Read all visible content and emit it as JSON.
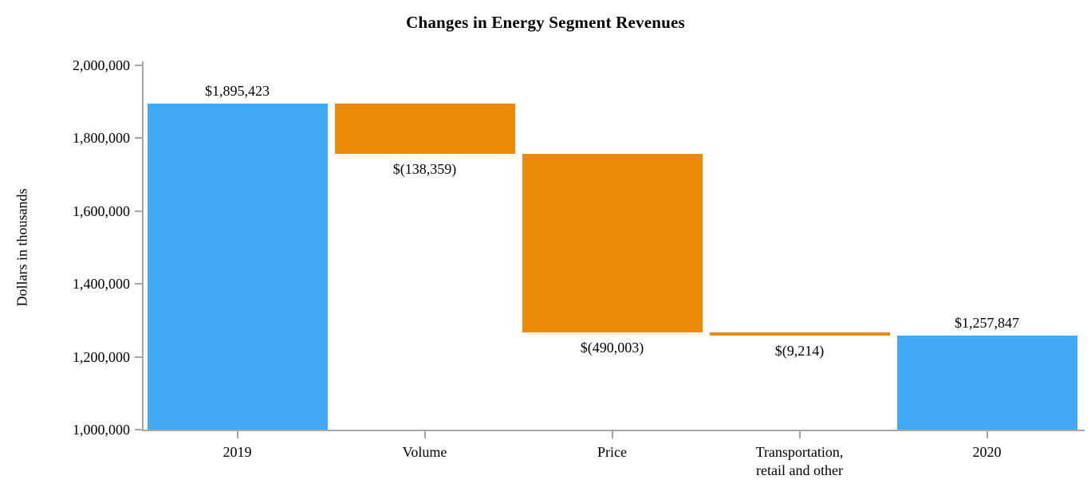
{
  "title": "Changes in Energy Segment Revenues",
  "chart_data": {
    "type": "bar",
    "subtype": "waterfall",
    "title": "Changes in Energy Segment Revenues",
    "xlabel": "",
    "ylabel": "Dollars in thousands",
    "ylim": [
      1000000,
      2000000
    ],
    "ytick_step": 200000,
    "ytick_labels": [
      "2,000,000",
      "1,800,000",
      "1,600,000",
      "1,400,000",
      "1,200,000",
      "1,000,000"
    ],
    "grid": false,
    "legend_position": "none",
    "categories": [
      "2019",
      "Volume",
      "Price",
      "Transportation,\nretail and other",
      "2020"
    ],
    "bars": [
      {
        "category": "2019",
        "value": 1895423,
        "start": 1000000,
        "end": 1895423,
        "data_label": "$1,895,423",
        "color_key": "total_blue",
        "label_position": "above"
      },
      {
        "category": "Volume",
        "value": -138359,
        "start": 1895423,
        "end": 1757064,
        "data_label": "$(138,359)",
        "color_key": "decrease_orange",
        "label_position": "below"
      },
      {
        "category": "Price",
        "value": -490003,
        "start": 1757064,
        "end": 1267061,
        "data_label": "$(490,003)",
        "color_key": "decrease_orange",
        "label_position": "below"
      },
      {
        "category": "Transportation,\nretail and other",
        "value": -9214,
        "start": 1267061,
        "end": 1257847,
        "data_label": "$(9,214)",
        "color_key": "decrease_orange",
        "label_position": "below"
      },
      {
        "category": "2020",
        "value": 1257847,
        "start": 1000000,
        "end": 1257847,
        "data_label": "$1,257,847",
        "color_key": "total_blue",
        "label_position": "above"
      }
    ],
    "colors": {
      "total_blue": "#41aaf8",
      "decrease_orange": "#eb8b05",
      "axis": "#a6a6a6",
      "text": "#000000",
      "background": "#ffffff"
    }
  }
}
